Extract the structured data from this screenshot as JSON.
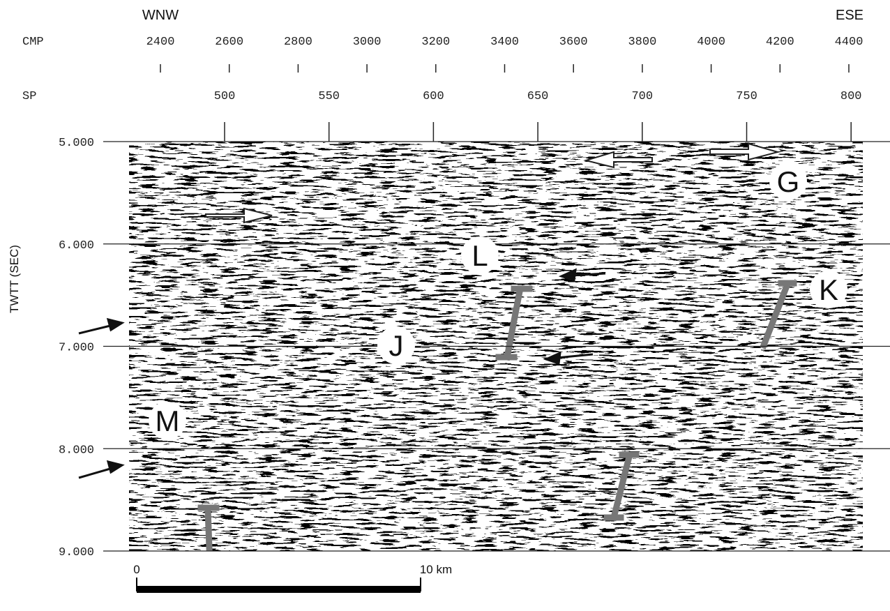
{
  "header": {
    "left": "WNW",
    "right": "ESE"
  },
  "axes": {
    "cmp": {
      "label": "CMP",
      "ticks": [
        "2400",
        "2600",
        "2800",
        "3000",
        "3200",
        "3400",
        "3600",
        "3800",
        "4000",
        "4200",
        "4400"
      ]
    },
    "sp": {
      "label": "SP",
      "ticks": [
        "500",
        "550",
        "600",
        "650",
        "700",
        "750",
        "800"
      ]
    },
    "y": {
      "label": "TWTT (SEC)",
      "ticks": [
        "5.000",
        "6.000",
        "7.000",
        "8.000",
        "9.000"
      ]
    }
  },
  "labels": [
    "G",
    "L",
    "K",
    "J",
    "M"
  ],
  "scale": {
    "start": "0",
    "end": "10 km"
  }
}
